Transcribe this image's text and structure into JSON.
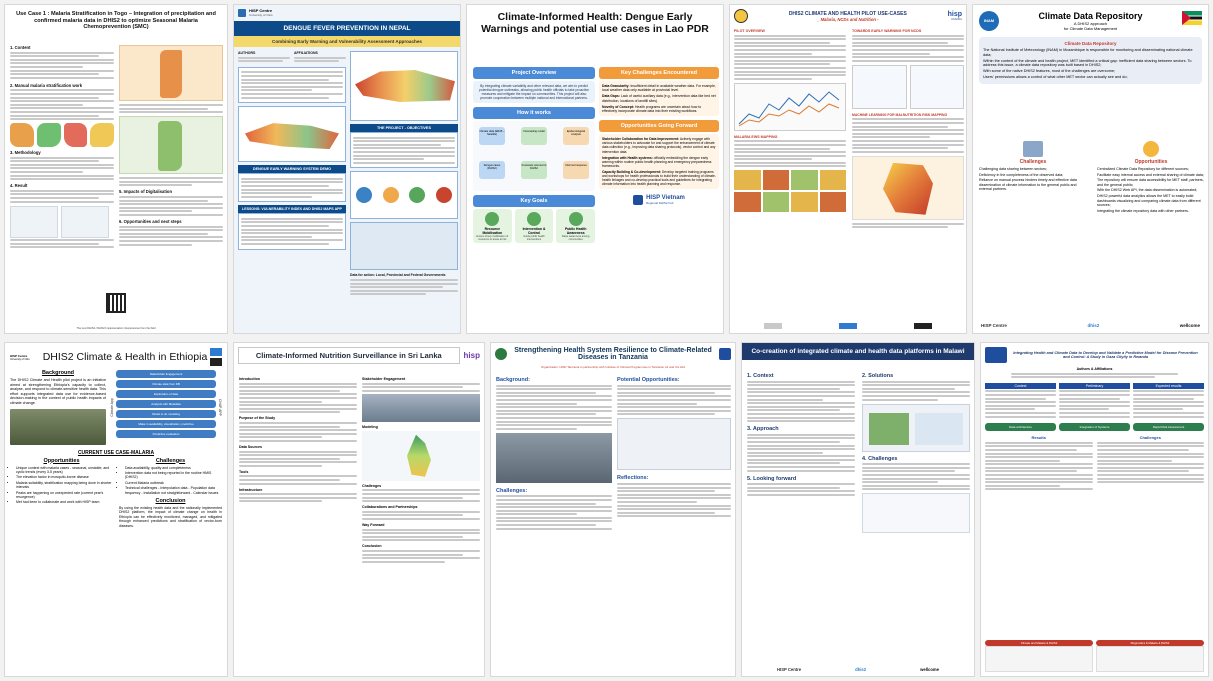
{
  "p1": {
    "title": "Use Case 1 : Malaria Stratification in Togo – Integration of precipitation and confirmed malaria data in DHIS2 to optimize Seasonal Malaria Chemoprevention (SMC)",
    "sections": [
      "1. Content",
      "2. Manual malaria stratification work",
      "3. Methodology",
      "4. Result",
      "5. Impacts of Digitalisation",
      "6. Opportunities and next steps"
    ],
    "footer": "The next DHIS2 / DHIS2 Implementation / Experiences from the field"
  },
  "p2": {
    "org": "HISP Centre",
    "org2": "University of Oslo",
    "title": "DENGUE FEVER PREVENTION IN NEPAL",
    "subtitle": "Combining Early Warning and Vulnerability Assessment Approaches",
    "authors_h": "AUTHORS",
    "affil_h": "AFFILIATIONS",
    "project_h": "THE PROJECT - OBJECTIVES",
    "ews_h": "DENGUE EARLY WARNING SYSTEM DEMO",
    "lessons_h": "LESSONS: VULNERABILITY INDEX AND DHIS2 MAPS APP",
    "data_h": "Data for action: Local, Provincial and Federal Governments"
  },
  "p3": {
    "title": "Climate-Informed Health: Dengue Early Warnings and potential use cases in Lao PDR",
    "overview_h": "Project Overview",
    "overview": "By integrating climate variability and other relevant data, we aim to predict potential dengue outbreaks, allowing public health officials to take proactive measures and mitigate the impact on communities. This project will also promote cooperation between multiple national and international partners.",
    "challenges_h": "Key Challenges Encountered",
    "challenges": [
      {
        "b": "Data Granularity:",
        "t": "Insufficient detail in available weather data. For example, local weather data only available at provincial level."
      },
      {
        "b": "Data Gaps:",
        "t": "Lack of useful auxiliary data (e.g., intervention data like bed net distribution, locations of landfill sites)."
      },
      {
        "b": "Novelty of Concept:",
        "t": "Health programs are uncertain about how to effectively incorporate climate data into their existing workflows."
      }
    ],
    "how_h": "How it works",
    "how_nodes": [
      "Climate data (ERA5 – Satellite)",
      "Dengue cases (DHIS2)",
      "Forecasting model",
      "Forecasts returned to DHIS2",
      "Epidemiological Analysis",
      "Informed response"
    ],
    "goals_h": "Key Goals",
    "goals": [
      {
        "t": "Resource Mobilisation",
        "d": "Ensure timely mobilisation of resources to areas at risk"
      },
      {
        "t": "Intervention & Control",
        "d": "Guide public health interventions"
      },
      {
        "t": "Public Health Awareness",
        "d": "Raise awareness among communities"
      }
    ],
    "going_h": "Opportunities Going Forward",
    "going": [
      {
        "b": "Stakeholder Collaboration for Data Improvement:",
        "t": "Actively engage with various stakeholders to advocate for and support the enhancement of climate data collection (e.g., improving data sharing protocols), vector control and any intervention data."
      },
      {
        "b": "Integration with Health systems:",
        "t": "officially embedding the dengue early warning within routine public health planning and emergency preparedness frameworks."
      },
      {
        "b": "Capacity Building & Co-development:",
        "t": "Develop targeted training programs and workshops for health professionals to build their understanding of climate-health linkages and co-develop practical tools and guidelines for integrating climate information into health planning and response."
      }
    ],
    "logo": "HISP Vietnam",
    "logo_sub": "Regional DHIS2 hub"
  },
  "p4": {
    "title": "DHIS2 CLIMATE AND HEALTH PILOT USE-CASES",
    "subtitle": "_ Malaria, NCDs and Nutrition -",
    "pilot_h": "PILOT OVERVIEW",
    "ews_h": "TOWARDS EARLY WARNING FOR NCDS",
    "ml_h": "MACHINE LEARNING FOR MALNUTRITION RISK MAPPING",
    "mal_h": "MALARIA EWS MAPPING",
    "logo": "hisp",
    "logo_sub": "UGANDA"
  },
  "p5": {
    "title": "Climate Data Repository",
    "sub1": "A DHIS2 approach",
    "sub2": "for Climate Data Management",
    "repo_h": "Climate Data Repository",
    "repo_items": [
      "The National Institute of Meteorology (INAM) in Mozambique is responsible for monitoring and disseminating national climate data;",
      "Within the context of the climate and health project, MET identified a critical gap: inefficient data sharing between sectors. To address this issue, a climate data repository was built based in DHIS2;",
      "With some of the native DHIS2 features, most of the challenges are overcome;",
      "Users' permissions allows a control of what other MET sector can actually see and do;"
    ],
    "chal_h": "Challenges",
    "chal_items": [
      "Challenging data sharing between sectors;",
      "Deficiency in the completeness of the observed data;",
      "Reliance on manual process hinders timely and effective data dissemination of climate information to the general public and external partners."
    ],
    "opp_h": "Opportunities",
    "opp_items": [
      "Centralized Climate Data Repository for different sources;",
      "Facilitate easy internal access and external sharing of climate data;",
      "The repository will ensure data accessibility for MET staff, partners, and the general public;",
      "With the DHIS2 Web API, the data dissemination is automated;",
      "DHIS2 powerful data analytics allows the MET to easily build dashboards visualizing and comparing climate data from different sources;",
      "Integrating the climate repository data with other partners."
    ],
    "inam": "INAM",
    "footer_logos": [
      "HISP Centre",
      "dhis2",
      "wellcome"
    ]
  },
  "p6": {
    "title": "DHIS2 Climate & Health in Ethiopia",
    "bg_h": "Background",
    "bg": "The DHIS2 Climate and Health pilot project is an initiative aimed at strengthening Ethiopia's capacity to collect, analyse, and respond to climate-sensitive health data. This effort supports integrated data use for evidence-based decision-making in the context of public health impacts of climate change.",
    "steps": [
      "Stakeholder Engagement",
      "Climate data from DB",
      "Exploration of data",
      "Analysis with Metadata",
      "Model to do modeling",
      "Make in availability, visualization, predictive",
      "Predictive evaluation"
    ],
    "side_left": "Climate App",
    "side_right": "CHAP APP",
    "usecase_h": "CURRENT USE CASE-MALARIA",
    "opp_h": "Opportunities",
    "opp": [
      "Unique context with malaria cases - seasonal, unstable, and cyclic trends (every 3-5 years)",
      "The elevation factor in mosquito-borne disease",
      "Malaria suitability, stratification mapping being done in shorter intervals",
      "Peaks are happening on unexpected rate (current year's resurgence)",
      "Met had keen to collaborate and work with HISP team"
    ],
    "chal_h": "Challenges",
    "chal": [
      "Data availability, quality and completeness",
      "Intervention data not being reported in the routine HMIS (DHIS2)",
      "Current Malaria outbreak",
      "Technical challenges - Interpolation data - Population data frequency - Installation not straightforward - Calendar issues"
    ],
    "concl_h": "Conclusion",
    "concl": "By using the existing health data and the nationally implemented DHIS2 platform, the impact of climate change on health in Ethiopia can be effectively monitored, managed, and mitigated through enhanced predictions and stratification of vector-born diseases.",
    "org": "HISP Centre",
    "org2": "University of Oslo"
  },
  "p7": {
    "title": "Climate-Informed Nutrition Surveillance in Sri Lanka",
    "logo": "hisp",
    "sections": [
      "Introduction",
      "Purpose of the Study",
      "Results",
      "Observed Correlations",
      "Data Sources",
      "Tools",
      "Infrastructure",
      "Stakeholder Engagement",
      "Modeling",
      "Challenges",
      "Collaborations and Partnerships",
      "Way Forward",
      "Conclusion"
    ]
  },
  "p8": {
    "title": "Strengthening Health System Resilience to Climate-Related Diseases in Tanzania",
    "org_line": "Organization: HISP Tanzania in partnership with Institute of Clinical Programmes in Tanzania, HI and UiL HIA",
    "bg_h": "Background:",
    "pot_h": "Potential Opportunities:",
    "chal_h": "Challenges:",
    "refl_h": "Reflections:"
  },
  "p9": {
    "title": "Co-creation of integrated climate and health data platforms in Malawi",
    "sections": [
      "1. Context",
      "2. Solutions",
      "3. Approach",
      "4. Challenges",
      "5. Looking forward"
    ],
    "footer_logos": [
      "HISP Centre",
      "dhis2",
      "wellcome"
    ]
  },
  "p10": {
    "title": "Integrating Health and Climate Data to Develop and Validate a Predictive Model for Disease Prevention and Control: A Study in Gaza City/ty in Rwanda",
    "authors_h": "Authors & Affiliations",
    "col1_h": "Context",
    "col2_h": "Preliminary",
    "col3_h": "Expected results",
    "results_h": "Results",
    "chal_h": "Challenges",
    "methods": [
      "Data architecture",
      "Integration of Systems",
      "Rapid Risk Assessment"
    ],
    "footer": [
      "Climate and Malaria & DHIS2",
      "Diagnostics & Malaria & DHIS2"
    ]
  }
}
